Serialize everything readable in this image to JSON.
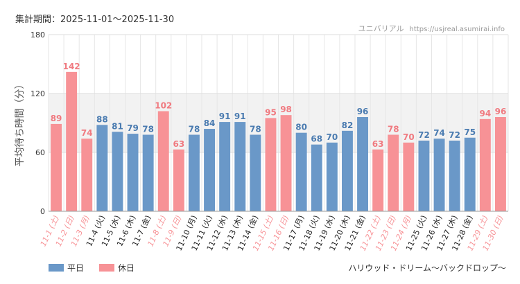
{
  "header": {
    "period": "集計期間：2025-11-01～2025-11-30",
    "source_name": "ユニバリアル",
    "source_site": "https://usjreal.asumirai.info"
  },
  "colors": {
    "weekday": "#6a98c8",
    "holiday": "#f79296",
    "weekday_label": "#4a7bb0",
    "holiday_label": "#f07a80",
    "band": "#f2f2f2"
  },
  "legend": {
    "weekday": "平日",
    "holiday": "休日"
  },
  "footnote": "ハリウッド・ドリーム～バックドロップ～",
  "chart_data": {
    "type": "bar",
    "title": "",
    "ylabel": "平均待ち時間（分）",
    "ylim": [
      0,
      180
    ],
    "yticks": [
      0,
      60,
      120,
      180
    ],
    "shaded_band": [
      60,
      120
    ],
    "categories": [
      "11-1 (土)",
      "11-2 (日)",
      "11-3 (月)",
      "11-4 (火)",
      "11-5 (水)",
      "11-6 (木)",
      "11-7 (金)",
      "11-8 (土)",
      "11-9 (日)",
      "11-10 (月)",
      "11-11 (火)",
      "11-12 (水)",
      "11-13 (木)",
      "11-14 (金)",
      "11-15 (土)",
      "11-16 (日)",
      "11-17 (月)",
      "11-18 (火)",
      "11-19 (水)",
      "11-20 (木)",
      "11-21 (金)",
      "11-22 (土)",
      "11-23 (日)",
      "11-24 (月)",
      "11-25 (火)",
      "11-26 (水)",
      "11-27 (木)",
      "11-28 (金)",
      "11-29 (土)",
      "11-30 (日)"
    ],
    "values": [
      89,
      142,
      74,
      88,
      81,
      79,
      78,
      102,
      63,
      78,
      84,
      91,
      91,
      78,
      95,
      98,
      80,
      68,
      70,
      82,
      96,
      63,
      78,
      70,
      72,
      74,
      72,
      75,
      94,
      96
    ],
    "holiday": [
      true,
      true,
      true,
      false,
      false,
      false,
      false,
      true,
      true,
      false,
      false,
      false,
      false,
      false,
      true,
      true,
      false,
      false,
      false,
      false,
      false,
      true,
      true,
      true,
      false,
      false,
      false,
      false,
      true,
      true
    ]
  }
}
